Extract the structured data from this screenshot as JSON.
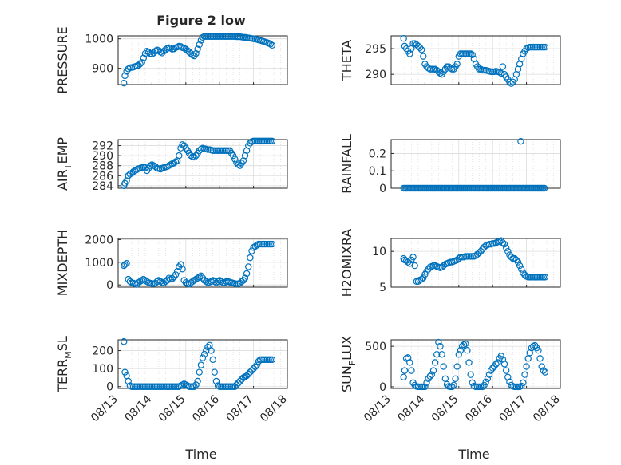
{
  "figure": {
    "title": "Figure 2 low",
    "xlabel_left": "Time",
    "xlabel_right": "Time",
    "marker_color": "#0072BD",
    "grid": true,
    "x_tick_labels": [
      "08/13",
      "08/14",
      "08/15",
      "08/16",
      "08/17",
      "08/18"
    ]
  },
  "chart_data": [
    {
      "type": "scatter",
      "name": "PRESSURE",
      "ylabel": "PRESSURE",
      "ylabel_sub": "",
      "xlim": [
        0,
        5
      ],
      "ylim": [
        845,
        1010
      ],
      "yticks": [
        900,
        1000
      ],
      "x": [
        0.17,
        0.2,
        0.25,
        0.3,
        0.35,
        0.4,
        0.45,
        0.5,
        0.55,
        0.6,
        0.65,
        0.7,
        0.75,
        0.8,
        0.85,
        0.9,
        0.95,
        1.0,
        1.05,
        1.1,
        1.15,
        1.2,
        1.25,
        1.3,
        1.35,
        1.4,
        1.45,
        1.5,
        1.55,
        1.6,
        1.65,
        1.7,
        1.75,
        1.8,
        1.85,
        1.9,
        1.95,
        2.0,
        2.05,
        2.1,
        2.15,
        2.2,
        2.25,
        2.3,
        2.35,
        2.4,
        2.45,
        2.5,
        2.55,
        2.6,
        2.65,
        2.7,
        2.75,
        2.8,
        2.85,
        2.9,
        2.95,
        3.0,
        3.05,
        3.1,
        3.15,
        3.2,
        3.25,
        3.3,
        3.35,
        3.4,
        3.45,
        3.5,
        3.55,
        3.6,
        3.65,
        3.7,
        3.75,
        3.8,
        3.85,
        3.9,
        3.95,
        4.0,
        4.05,
        4.1,
        4.15,
        4.2,
        4.25,
        4.3,
        4.35,
        4.4,
        4.45,
        4.5,
        4.55
      ],
      "y": [
        850,
        875,
        890,
        898,
        902,
        903,
        904,
        906,
        908,
        910,
        915,
        920,
        935,
        950,
        958,
        955,
        950,
        948,
        952,
        958,
        962,
        960,
        955,
        952,
        958,
        963,
        967,
        970,
        968,
        965,
        966,
        970,
        972,
        975,
        974,
        970,
        968,
        965,
        960,
        955,
        950,
        945,
        942,
        950,
        965,
        980,
        995,
        1005,
        1008,
        1008,
        1008,
        1008,
        1008,
        1008,
        1008,
        1008,
        1008,
        1008,
        1008,
        1008,
        1008,
        1008,
        1008,
        1008,
        1008,
        1008,
        1008,
        1007,
        1007,
        1007,
        1006,
        1005,
        1005,
        1004,
        1003,
        1002,
        1001,
        1000,
        999,
        998,
        996,
        995,
        993,
        991,
        989,
        987,
        985,
        982,
        978
      ]
    },
    {
      "type": "scatter",
      "name": "THETA",
      "ylabel": "THETA",
      "ylabel_sub": "",
      "xlim": [
        0,
        5
      ],
      "ylim": [
        288,
        297.5
      ],
      "yticks": [
        290,
        295
      ],
      "x": [
        0.37,
        0.4,
        0.45,
        0.5,
        0.55,
        0.6,
        0.65,
        0.7,
        0.75,
        0.8,
        0.85,
        0.9,
        0.95,
        1.0,
        1.05,
        1.1,
        1.15,
        1.2,
        1.25,
        1.3,
        1.35,
        1.4,
        1.45,
        1.5,
        1.55,
        1.6,
        1.65,
        1.7,
        1.75,
        1.8,
        1.85,
        1.9,
        1.95,
        2.0,
        2.05,
        2.1,
        2.15,
        2.2,
        2.25,
        2.3,
        2.35,
        2.4,
        2.45,
        2.5,
        2.55,
        2.6,
        2.65,
        2.7,
        2.75,
        2.8,
        2.85,
        2.9,
        2.95,
        3.0,
        3.05,
        3.1,
        3.15,
        3.2,
        3.25,
        3.3,
        3.35,
        3.4,
        3.45,
        3.5,
        3.55,
        3.6,
        3.65,
        3.7,
        3.75,
        3.8,
        3.85,
        3.9,
        3.95,
        4.0,
        4.05,
        4.1,
        4.15,
        4.2,
        4.25,
        4.3,
        4.35,
        4.4,
        4.45,
        4.5,
        4.55
      ],
      "y": [
        297,
        295.5,
        295,
        294.5,
        294,
        295,
        296,
        296,
        295.8,
        295.5,
        295.2,
        294.8,
        293.5,
        292,
        291.5,
        291.2,
        291,
        291,
        291,
        291,
        290.8,
        290.5,
        290.2,
        290,
        290.5,
        291,
        291.5,
        291.5,
        291.2,
        291,
        291,
        291.5,
        292,
        293.5,
        294,
        294,
        294,
        294,
        294,
        294,
        294,
        293.8,
        293,
        292,
        291.5,
        291,
        291,
        290.8,
        290.8,
        290.8,
        290.7,
        290.6,
        290.5,
        290.5,
        290.5,
        290.6,
        290.5,
        290.4,
        290.2,
        291.5,
        290,
        289.5,
        289,
        288.5,
        288.2,
        288.5,
        289,
        290,
        291,
        292,
        293,
        294,
        294.5,
        295,
        295.2,
        295.3,
        295.3,
        295.3,
        295.3,
        295.3,
        295.3,
        295.3,
        295.3,
        295.3,
        295.3
      ]
    },
    {
      "type": "scatter",
      "name": "AIR_TEMP",
      "ylabel": "AIR",
      "ylabel_sub": "T",
      "ylabel_rest": "EMP",
      "xlim": [
        0,
        5
      ],
      "ylim": [
        283.5,
        293.2
      ],
      "yticks": [
        284,
        286,
        288,
        290,
        292
      ],
      "x": [
        0.17,
        0.2,
        0.25,
        0.3,
        0.35,
        0.4,
        0.45,
        0.5,
        0.55,
        0.6,
        0.65,
        0.7,
        0.75,
        0.8,
        0.85,
        0.9,
        0.95,
        1.0,
        1.05,
        1.1,
        1.15,
        1.2,
        1.25,
        1.3,
        1.35,
        1.4,
        1.45,
        1.5,
        1.55,
        1.6,
        1.65,
        1.7,
        1.75,
        1.8,
        1.85,
        1.9,
        1.95,
        2.0,
        2.05,
        2.1,
        2.15,
        2.2,
        2.25,
        2.3,
        2.35,
        2.4,
        2.45,
        2.5,
        2.55,
        2.6,
        2.65,
        2.7,
        2.75,
        2.8,
        2.85,
        2.9,
        2.95,
        3.0,
        3.05,
        3.1,
        3.15,
        3.2,
        3.25,
        3.3,
        3.35,
        3.4,
        3.45,
        3.5,
        3.55,
        3.6,
        3.65,
        3.7,
        3.75,
        3.8,
        3.85,
        3.9,
        3.95,
        4.0,
        4.05,
        4.1,
        4.15,
        4.2,
        4.25,
        4.3,
        4.35,
        4.4,
        4.45,
        4.5,
        4.55
      ],
      "y": [
        284,
        284.5,
        285,
        286,
        286.3,
        286.5,
        286.8,
        287,
        287.2,
        287.4,
        287.5,
        287.6,
        287.7,
        287.6,
        287,
        287.5,
        288,
        288.2,
        288,
        287.8,
        287.5,
        287.4,
        287.3,
        287.5,
        287.6,
        287.7,
        287.8,
        288,
        288.2,
        288.4,
        288.5,
        288.8,
        289,
        290,
        291.5,
        292.2,
        292,
        291.5,
        291,
        290.5,
        290,
        289.8,
        289.7,
        290,
        290.5,
        291,
        291.3,
        291.5,
        291.4,
        291.3,
        291.2,
        291.2,
        291.1,
        291,
        291,
        291,
        291,
        291,
        291,
        291,
        291,
        291,
        291,
        291,
        290.5,
        290,
        289.3,
        288.6,
        288.2,
        288,
        288.5,
        289,
        290,
        291,
        292,
        292.5,
        292.8,
        292.9,
        292.9,
        292.9,
        292.9,
        292.9,
        292.9,
        292.9,
        292.9,
        292.9,
        292.9,
        292.9,
        292.9
      ]
    },
    {
      "type": "scatter",
      "name": "RAINFALL",
      "ylabel": "RAINFALL",
      "ylabel_sub": "",
      "xlim": [
        0,
        5
      ],
      "ylim": [
        0,
        0.28
      ],
      "yticks": [
        0,
        0.1,
        0.2
      ],
      "ytick_labels": [
        "0",
        "0.1",
        "0.2"
      ],
      "series_x_range": [
        0.37,
        4.55
      ],
      "baseline": 0,
      "outlier": {
        "x": 3.83,
        "y": 0.27
      }
    },
    {
      "type": "scatter",
      "name": "MIXDEPTH",
      "ylabel": "MIXDEPTH",
      "ylabel_sub": "",
      "xlim": [
        0,
        5
      ],
      "ylim": [
        -100,
        2050
      ],
      "yticks": [
        0,
        1000,
        2000
      ],
      "x": [
        0.17,
        0.2,
        0.25,
        0.3,
        0.35,
        0.4,
        0.45,
        0.5,
        0.55,
        0.6,
        0.65,
        0.7,
        0.75,
        0.8,
        0.85,
        0.9,
        0.95,
        1.0,
        1.05,
        1.1,
        1.15,
        1.2,
        1.25,
        1.3,
        1.35,
        1.4,
        1.45,
        1.5,
        1.55,
        1.6,
        1.65,
        1.7,
        1.75,
        1.8,
        1.85,
        1.9,
        1.95,
        2.0,
        2.05,
        2.1,
        2.15,
        2.2,
        2.25,
        2.3,
        2.35,
        2.4,
        2.45,
        2.5,
        2.55,
        2.6,
        2.65,
        2.7,
        2.75,
        2.8,
        2.85,
        2.9,
        2.95,
        3.0,
        3.05,
        3.1,
        3.15,
        3.2,
        3.25,
        3.3,
        3.35,
        3.4,
        3.45,
        3.5,
        3.55,
        3.6,
        3.65,
        3.7,
        3.75,
        3.8,
        3.85,
        3.9,
        3.95,
        4.0,
        4.05,
        4.1,
        4.15,
        4.2,
        4.25,
        4.3,
        4.35,
        4.4,
        4.45,
        4.5,
        4.55
      ],
      "y": [
        850,
        900,
        950,
        250,
        150,
        100,
        80,
        50,
        20,
        100,
        150,
        200,
        250,
        200,
        150,
        100,
        80,
        60,
        50,
        80,
        150,
        200,
        150,
        100,
        80,
        150,
        200,
        300,
        250,
        280,
        350,
        450,
        600,
        800,
        900,
        700,
        200,
        100,
        50,
        30,
        100,
        150,
        200,
        250,
        300,
        350,
        400,
        300,
        200,
        150,
        100,
        120,
        150,
        200,
        150,
        100,
        150,
        200,
        150,
        100,
        100,
        150,
        150,
        120,
        100,
        80,
        60,
        40,
        50,
        80,
        150,
        200,
        300,
        500,
        800,
        1200,
        1500,
        1650,
        1700,
        1750,
        1800,
        1800,
        1800,
        1800,
        1800,
        1800,
        1800,
        1800,
        1800
      ]
    },
    {
      "type": "scatter",
      "name": "H2OMIXRA",
      "ylabel": "H2OMIXRA",
      "ylabel_sub": "",
      "xlim": [
        0,
        5
      ],
      "ylim": [
        5,
        11.8
      ],
      "yticks": [
        5,
        10
      ],
      "x": [
        0.37,
        0.4,
        0.45,
        0.5,
        0.55,
        0.6,
        0.65,
        0.7,
        0.75,
        0.8,
        0.85,
        0.9,
        0.95,
        1.0,
        1.05,
        1.1,
        1.15,
        1.2,
        1.25,
        1.3,
        1.35,
        1.4,
        1.45,
        1.5,
        1.55,
        1.6,
        1.65,
        1.7,
        1.75,
        1.8,
        1.85,
        1.9,
        1.95,
        2.0,
        2.05,
        2.1,
        2.15,
        2.2,
        2.25,
        2.3,
        2.35,
        2.4,
        2.45,
        2.5,
        2.55,
        2.6,
        2.65,
        2.7,
        2.75,
        2.8,
        2.85,
        2.9,
        2.95,
        3.0,
        3.05,
        3.1,
        3.15,
        3.2,
        3.25,
        3.3,
        3.35,
        3.4,
        3.45,
        3.5,
        3.55,
        3.6,
        3.65,
        3.7,
        3.75,
        3.8,
        3.85,
        3.9,
        3.95,
        4.0,
        4.05,
        4.1,
        4.15,
        4.2,
        4.25,
        4.3,
        4.35,
        4.4,
        4.45,
        4.5,
        4.55
      ],
      "y": [
        9,
        8.8,
        8.7,
        8.5,
        8.3,
        8.8,
        9.2,
        8,
        5.8,
        5.8,
        6,
        6.1,
        6.3,
        6.8,
        7.2,
        7.5,
        7.8,
        7.9,
        8,
        8,
        7.9,
        7.8,
        7.7,
        7.8,
        8,
        8.2,
        8.3,
        8.4,
        8.5,
        8.5,
        8.6,
        8.7,
        8.8,
        9,
        9.2,
        9.2,
        9.2,
        9.3,
        9.3,
        9.3,
        9.3,
        9.3,
        9.3,
        9.4,
        9.6,
        9.8,
        10,
        10.3,
        10.6,
        10.8,
        10.9,
        11,
        11,
        11.1,
        11.1,
        11.2,
        11.3,
        11.4,
        11.5,
        11.2,
        11,
        10.5,
        10,
        9.5,
        9.2,
        9,
        9,
        8.8,
        8.5,
        8,
        7.5,
        7,
        6.7,
        6.5,
        6.4,
        6.4,
        6.4,
        6.4,
        6.4,
        6.4,
        6.4,
        6.4,
        6.4,
        6.4,
        6.4
      ]
    },
    {
      "type": "scatter",
      "name": "TERR_MSL",
      "ylabel": "TERR",
      "ylabel_sub": "M",
      "ylabel_rest": "SL",
      "xlim": [
        0,
        5
      ],
      "ylim": [
        -10,
        260
      ],
      "yticks": [
        0,
        100,
        200
      ],
      "x": [
        0.17,
        0.2,
        0.25,
        0.3,
        0.35,
        0.4,
        0.45,
        0.5,
        0.55,
        0.6,
        0.65,
        0.7,
        0.75,
        0.8,
        0.85,
        0.9,
        0.95,
        1.0,
        1.05,
        1.1,
        1.15,
        1.2,
        1.25,
        1.3,
        1.35,
        1.4,
        1.45,
        1.5,
        1.55,
        1.6,
        1.65,
        1.7,
        1.75,
        1.8,
        1.85,
        1.9,
        1.95,
        2.0,
        2.05,
        2.1,
        2.15,
        2.2,
        2.25,
        2.3,
        2.35,
        2.4,
        2.45,
        2.5,
        2.55,
        2.6,
        2.65,
        2.7,
        2.75,
        2.8,
        2.85,
        2.9,
        2.95,
        3.0,
        3.05,
        3.1,
        3.15,
        3.2,
        3.25,
        3.3,
        3.35,
        3.4,
        3.45,
        3.5,
        3.55,
        3.6,
        3.65,
        3.7,
        3.75,
        3.8,
        3.85,
        3.9,
        3.95,
        4.0,
        4.05,
        4.1,
        4.15,
        4.2,
        4.25,
        4.3,
        4.35,
        4.4,
        4.45,
        4.5,
        4.55
      ],
      "y": [
        250,
        80,
        60,
        30,
        5,
        0,
        0,
        0,
        0,
        0,
        0,
        0,
        0,
        0,
        0,
        0,
        0,
        0,
        0,
        0,
        0,
        0,
        0,
        0,
        0,
        0,
        0,
        0,
        0,
        0,
        0,
        0,
        0,
        0,
        5,
        10,
        15,
        10,
        5,
        0,
        0,
        0,
        0,
        10,
        30,
        80,
        120,
        160,
        180,
        200,
        220,
        230,
        200,
        150,
        80,
        30,
        5,
        0,
        0,
        0,
        0,
        0,
        0,
        0,
        0,
        0,
        0,
        10,
        20,
        30,
        40,
        50,
        55,
        60,
        70,
        80,
        90,
        100,
        110,
        120,
        140,
        150,
        150,
        150,
        150,
        150,
        150,
        150,
        150
      ]
    },
    {
      "type": "scatter",
      "name": "SUN_FLUX",
      "ylabel": "SUN",
      "ylabel_sub": "F",
      "ylabel_rest": "LUX",
      "xlim": [
        0,
        5
      ],
      "ylim": [
        -20,
        580
      ],
      "yticks": [
        0,
        500
      ],
      "x": [
        0.37,
        0.4,
        0.45,
        0.5,
        0.55,
        0.6,
        0.65,
        0.7,
        0.75,
        0.8,
        0.85,
        0.9,
        0.95,
        1.0,
        1.05,
        1.1,
        1.15,
        1.2,
        1.25,
        1.3,
        1.35,
        1.4,
        1.45,
        1.5,
        1.55,
        1.6,
        1.65,
        1.7,
        1.75,
        1.8,
        1.85,
        1.9,
        1.95,
        2.0,
        2.05,
        2.1,
        2.15,
        2.2,
        2.25,
        2.3,
        2.35,
        2.4,
        2.45,
        2.5,
        2.55,
        2.6,
        2.65,
        2.7,
        2.75,
        2.8,
        2.85,
        2.9,
        2.95,
        3.0,
        3.05,
        3.1,
        3.15,
        3.2,
        3.25,
        3.3,
        3.35,
        3.4,
        3.45,
        3.5,
        3.55,
        3.6,
        3.65,
        3.7,
        3.75,
        3.8,
        3.85,
        3.9,
        3.95,
        4.0,
        4.05,
        4.1,
        4.15,
        4.2,
        4.25,
        4.3,
        4.35,
        4.4,
        4.45,
        4.5,
        4.55
      ],
      "y": [
        120,
        200,
        350,
        360,
        300,
        200,
        50,
        20,
        5,
        0,
        0,
        0,
        0,
        0,
        50,
        100,
        130,
        150,
        200,
        300,
        400,
        550,
        500,
        400,
        250,
        100,
        30,
        5,
        0,
        0,
        20,
        100,
        250,
        400,
        450,
        500,
        520,
        530,
        450,
        300,
        150,
        50,
        10,
        0,
        0,
        0,
        0,
        0,
        20,
        60,
        100,
        150,
        200,
        230,
        250,
        280,
        300,
        350,
        380,
        340,
        280,
        200,
        120,
        60,
        20,
        5,
        0,
        0,
        0,
        0,
        10,
        50,
        150,
        250,
        350,
        420,
        480,
        500,
        510,
        480,
        450,
        350,
        250,
        200,
        180
      ]
    }
  ]
}
